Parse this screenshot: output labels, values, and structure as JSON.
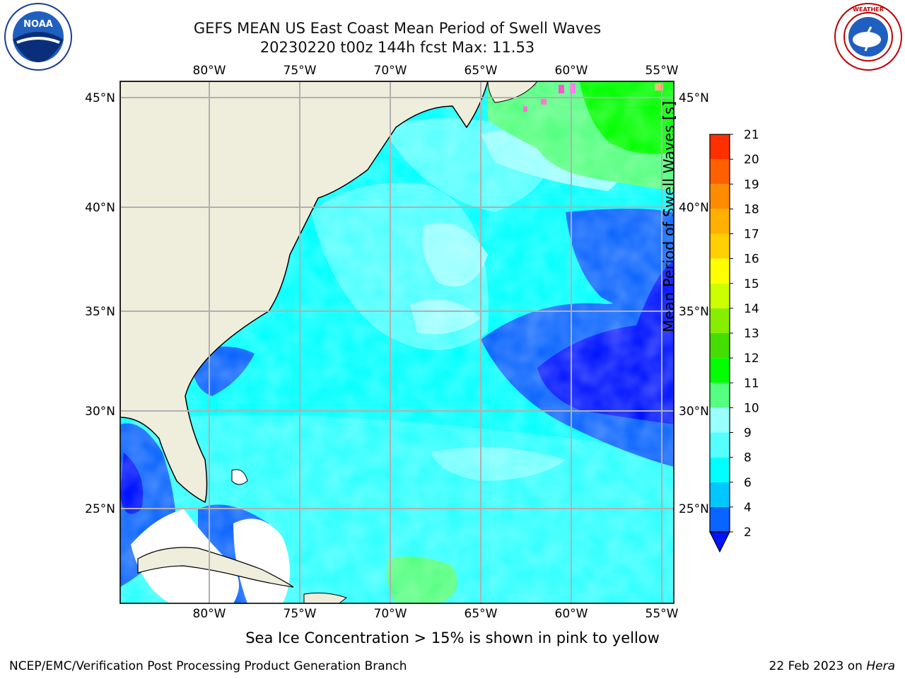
{
  "header": {
    "title_line1": "GEFS MEAN US East Coast Mean Period of Swell Waves",
    "title_line2": "20230220 t00z 144h fcst   Max: 11.53"
  },
  "logos": {
    "left": "NOAA",
    "right": "NATIONAL WEATHER SERVICE"
  },
  "map": {
    "lon_ticks": [
      "80°W",
      "75°W",
      "70°W",
      "65°W",
      "60°W",
      "55°W"
    ],
    "lon_values": [
      -80,
      -75,
      -70,
      -65,
      -60,
      -55
    ],
    "lat_ticks": [
      "45°N",
      "40°N",
      "35°N",
      "30°N",
      "25°N"
    ],
    "lat_values": [
      45,
      40,
      35,
      30,
      25
    ],
    "land_color": "#efeedd",
    "grid_color": "#b0b0b0"
  },
  "colorbar": {
    "label": "Mean Period of Swell Waves [s]",
    "ticks": [
      "2",
      "4",
      "6",
      "8",
      "9",
      "10",
      "11",
      "12",
      "13",
      "14",
      "15",
      "16",
      "17",
      "18",
      "19",
      "20",
      "21"
    ],
    "colors": [
      "#0014ff",
      "#0a64ff",
      "#00c8ff",
      "#00ffff",
      "#55ffff",
      "#99ffff",
      "#55ff80",
      "#00ff00",
      "#44dd00",
      "#88ee00",
      "#ccff00",
      "#ffff00",
      "#ffd000",
      "#ffb000",
      "#ff8c00",
      "#ff6000",
      "#ff3000",
      "#ff0000"
    ]
  },
  "note": "Sea Ice Concentration > 15% is shown in pink to yellow",
  "footer": {
    "left": "NCEP/EMC/Verification Post Processing Product Generation Branch",
    "date": "22 Feb 2023 on ",
    "host": "Hera"
  }
}
